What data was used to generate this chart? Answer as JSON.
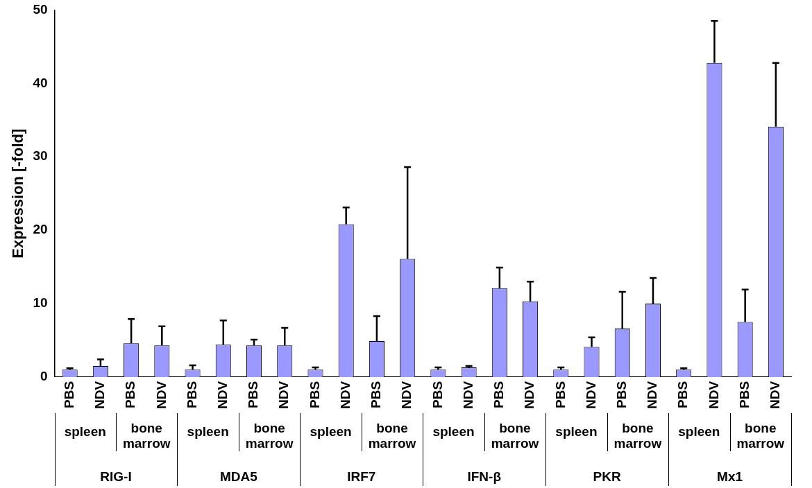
{
  "chart_data": {
    "type": "bar",
    "ylabel": "Expression [-fold]",
    "categories": [
      "PBS",
      "NDV",
      "PBS",
      "NDV",
      "PBS",
      "NDV",
      "PBS",
      "NDV",
      "PBS",
      "NDV",
      "PBS",
      "NDV",
      "PBS",
      "NDV",
      "PBS",
      "NDV",
      "PBS",
      "NDV",
      "PBS",
      "NDV",
      "PBS",
      "NDV",
      "PBS",
      "NDV"
    ],
    "values": [
      1.0,
      1.5,
      4.6,
      4.3,
      1.0,
      4.4,
      4.3,
      4.3,
      1.0,
      20.8,
      4.9,
      16.1,
      1.0,
      1.3,
      12.1,
      10.3,
      1.0,
      4.1,
      6.6,
      10.0,
      1.0,
      42.8,
      7.5,
      34.1
    ],
    "errors": [
      [
        1.0,
        1.2
      ],
      [
        1.5,
        2.4
      ],
      [
        4.6,
        7.9
      ],
      [
        4.3,
        6.9
      ],
      [
        1.0,
        1.6
      ],
      [
        4.4,
        7.7
      ],
      [
        4.3,
        5.1
      ],
      [
        4.3,
        6.7
      ],
      [
        1.0,
        1.3
      ],
      [
        20.8,
        23.1
      ],
      [
        4.9,
        8.3
      ],
      [
        16.1,
        28.6
      ],
      [
        1.0,
        1.3
      ],
      [
        1.3,
        1.5
      ],
      [
        12.1,
        14.9
      ],
      [
        10.3,
        13.0
      ],
      [
        1.0,
        1.3
      ],
      [
        4.1,
        5.4
      ],
      [
        6.6,
        11.6
      ],
      [
        10.0,
        13.5
      ],
      [
        1.0,
        1.2
      ],
      [
        42.8,
        48.5
      ],
      [
        7.5,
        11.9
      ],
      [
        34.1,
        42.8
      ]
    ],
    "color": "#9999ff",
    "ylim": [
      0,
      50
    ],
    "yticks": [
      0,
      10,
      20,
      30,
      40,
      50
    ],
    "grid": false,
    "legend": false,
    "annotations": [
      "spleen",
      "bone marrow",
      "spleen",
      "bone marrow",
      "spleen",
      "bone marrow",
      "spleen",
      "bone marrow",
      "spleen",
      "bone marrow",
      "spleen",
      "bone marrow",
      "RIG-I",
      "MDA5",
      "IRF7",
      "IFN-β",
      "PKR",
      "Mx1"
    ]
  }
}
